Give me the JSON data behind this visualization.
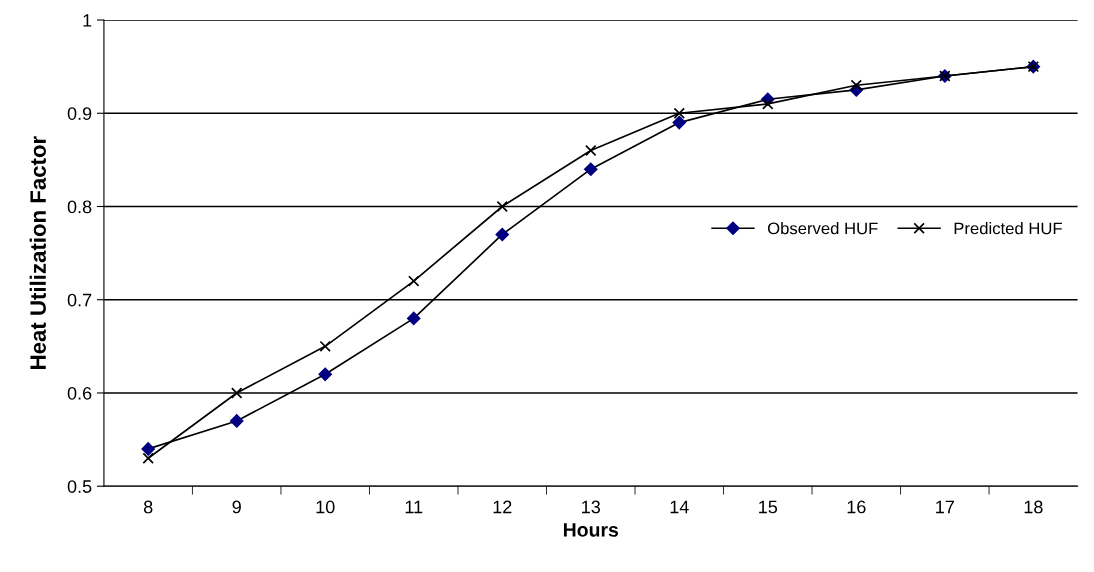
{
  "chart_data": {
    "type": "line",
    "xlabel": "Hours",
    "ylabel": "Heat Utilization Factor",
    "categories": [
      "8",
      "9",
      "10",
      "11",
      "12",
      "13",
      "14",
      "15",
      "16",
      "17",
      "18"
    ],
    "series": [
      {
        "name": "Observed HUF",
        "color": "#000080",
        "marker": "diamond",
        "values": [
          0.54,
          0.57,
          0.62,
          0.68,
          0.77,
          0.84,
          0.89,
          0.915,
          0.925,
          0.94,
          0.95
        ]
      },
      {
        "name": "Predicted HUF",
        "color": "#000000",
        "marker": "cross",
        "values": [
          0.53,
          0.6,
          0.65,
          0.72,
          0.8,
          0.86,
          0.9,
          0.91,
          0.93,
          0.94,
          0.95
        ]
      }
    ],
    "ylim": [
      0.5,
      1
    ],
    "yticks": [
      0.5,
      0.6,
      0.7,
      0.8,
      0.9,
      1
    ],
    "grid": "y",
    "legend": "right",
    "line_style": "solid"
  }
}
